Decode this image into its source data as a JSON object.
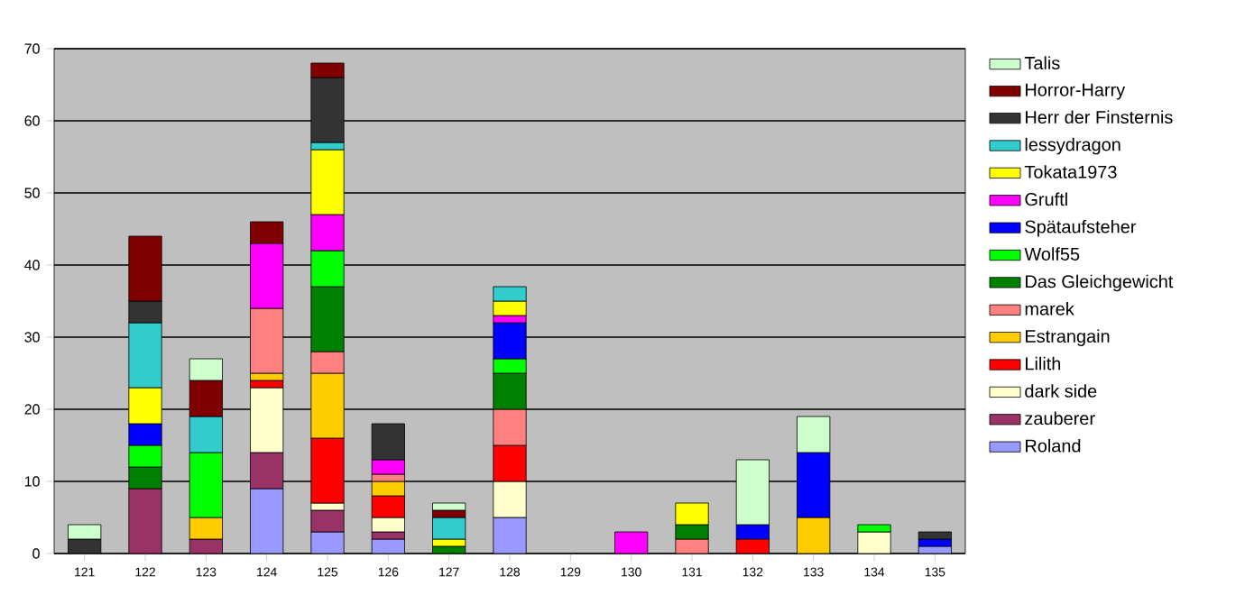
{
  "chart_data": {
    "type": "bar",
    "stacked": true,
    "categories": [
      "121",
      "122",
      "123",
      "124",
      "125",
      "126",
      "127",
      "128",
      "129",
      "130",
      "131",
      "132",
      "133",
      "134",
      "135"
    ],
    "series": [
      {
        "name": "Roland",
        "color": "#9999ff",
        "values": [
          null,
          null,
          null,
          9,
          3,
          2,
          null,
          5,
          null,
          null,
          null,
          null,
          null,
          null,
          1
        ]
      },
      {
        "name": "zauberer",
        "color": "#993366",
        "values": [
          null,
          9,
          2,
          5,
          3,
          1,
          null,
          null,
          null,
          null,
          null,
          null,
          null,
          null,
          null
        ]
      },
      {
        "name": "dark side",
        "color": "#ffffcc",
        "values": [
          null,
          null,
          null,
          9,
          1,
          2,
          null,
          5,
          null,
          null,
          null,
          null,
          null,
          3,
          null
        ]
      },
      {
        "name": "Lilith",
        "color": "#ff0000",
        "values": [
          null,
          null,
          null,
          1,
          9,
          3,
          null,
          5,
          null,
          null,
          null,
          2,
          null,
          null,
          null
        ]
      },
      {
        "name": "Estrangain",
        "color": "#ffcc00",
        "values": [
          null,
          null,
          3,
          1,
          9,
          2,
          null,
          null,
          null,
          null,
          null,
          null,
          5,
          null,
          null
        ]
      },
      {
        "name": "marek",
        "color": "#ff8080",
        "values": [
          null,
          null,
          null,
          9,
          3,
          1,
          null,
          5,
          null,
          null,
          2,
          null,
          null,
          null,
          null
        ]
      },
      {
        "name": "Das Gleichgewicht",
        "color": "#008000",
        "values": [
          null,
          3,
          null,
          null,
          9,
          null,
          1,
          5,
          null,
          null,
          2,
          null,
          null,
          null,
          null
        ]
      },
      {
        "name": "Wolf55",
        "color": "#00ff00",
        "values": [
          null,
          3,
          9,
          null,
          5,
          null,
          null,
          2,
          null,
          null,
          null,
          null,
          null,
          1,
          null
        ]
      },
      {
        "name": "Spätaufsteher",
        "color": "#0000ff",
        "values": [
          null,
          3,
          null,
          null,
          null,
          null,
          null,
          5,
          null,
          null,
          null,
          2,
          9,
          null,
          1
        ]
      },
      {
        "name": "Gruftl",
        "color": "#ff00ff",
        "values": [
          null,
          null,
          null,
          9,
          5,
          2,
          null,
          1,
          null,
          3,
          null,
          null,
          null,
          null,
          null
        ]
      },
      {
        "name": "Tokata1973",
        "color": "#ffff00",
        "values": [
          null,
          5,
          null,
          null,
          9,
          null,
          1,
          2,
          null,
          null,
          3,
          null,
          null,
          null,
          null
        ]
      },
      {
        "name": "lessydragon",
        "color": "#33cccc",
        "values": [
          null,
          9,
          5,
          null,
          1,
          null,
          3,
          2,
          null,
          null,
          null,
          null,
          null,
          null,
          null
        ]
      },
      {
        "name": "Herr der Finsternis",
        "color": "#333333",
        "values": [
          2,
          3,
          null,
          null,
          9,
          5,
          null,
          null,
          null,
          null,
          null,
          null,
          null,
          null,
          1
        ]
      },
      {
        "name": "Horror-Harry",
        "color": "#800000",
        "values": [
          null,
          9,
          5,
          3,
          2,
          null,
          1,
          null,
          null,
          null,
          null,
          null,
          null,
          null,
          null
        ]
      },
      {
        "name": "Talis",
        "color": "#ccffcc",
        "values": [
          2,
          null,
          3,
          null,
          null,
          null,
          1,
          null,
          null,
          null,
          null,
          9,
          5,
          null,
          null
        ]
      }
    ],
    "ylim": [
      0,
      70
    ],
    "yticks": [
      0,
      10,
      20,
      30,
      40,
      50,
      60,
      70
    ],
    "grid": "y",
    "legend": "right"
  }
}
